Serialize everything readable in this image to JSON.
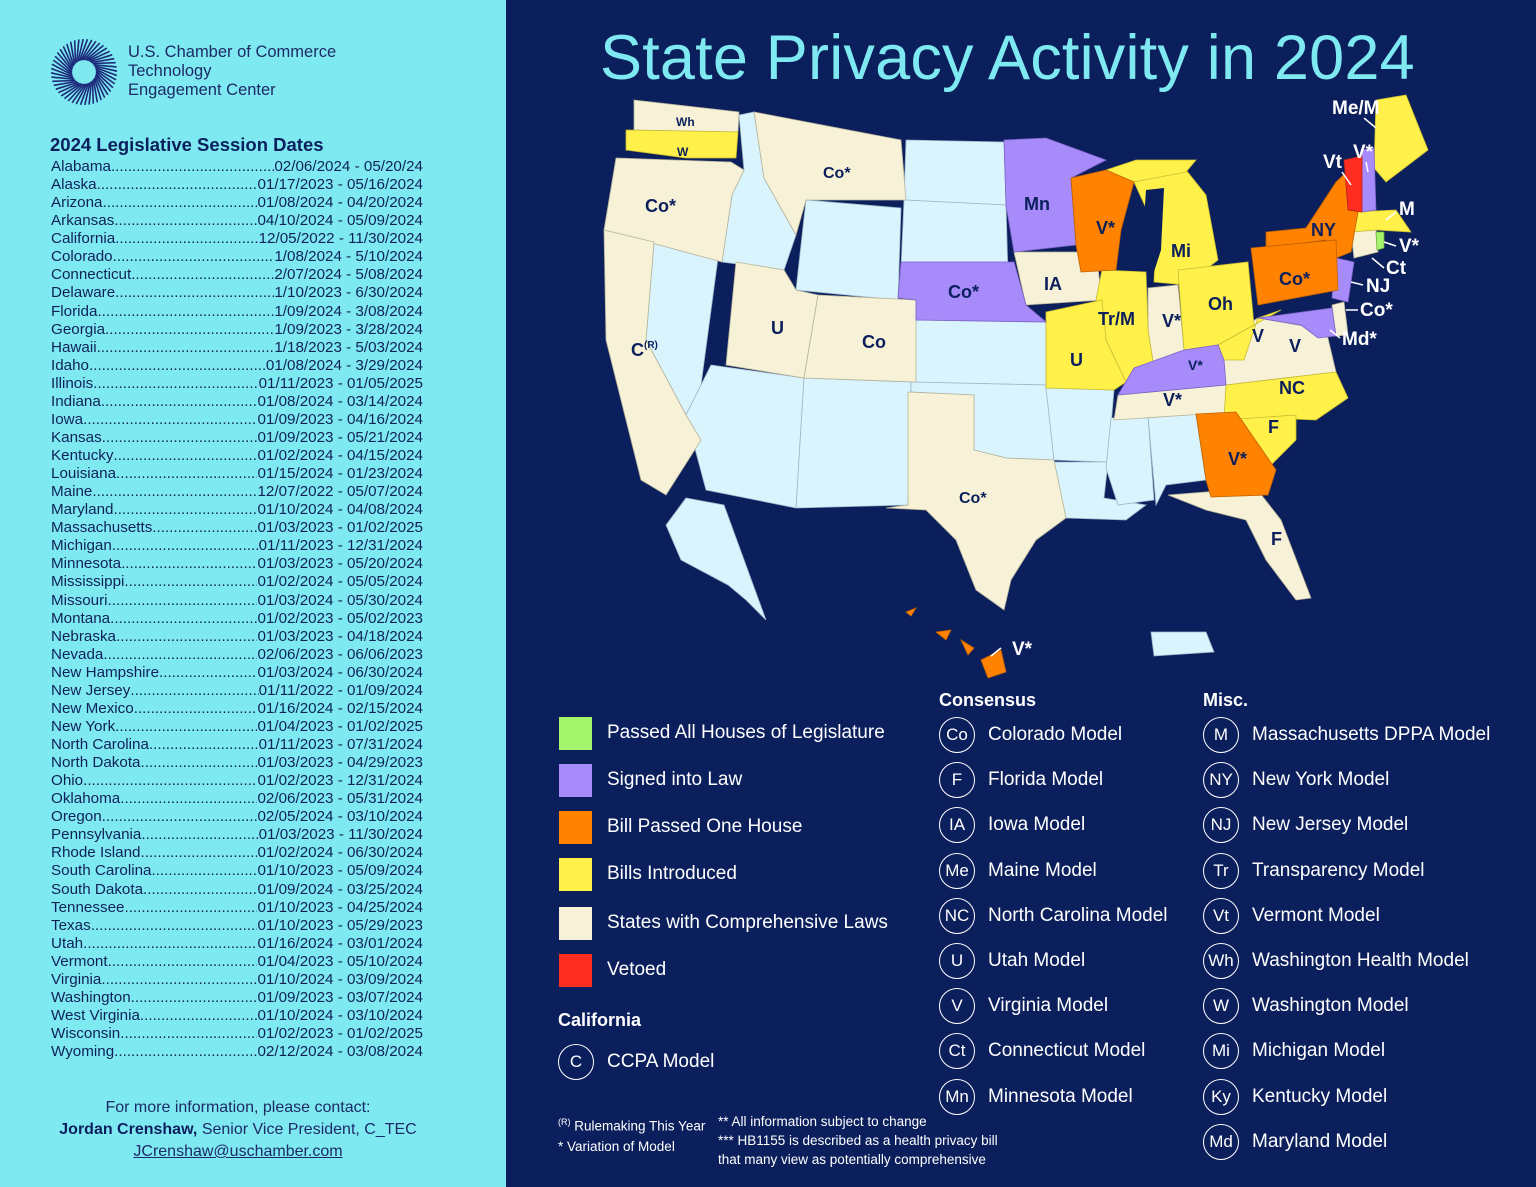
{
  "organization": {
    "logo": "sunburst-logo",
    "name_lines": [
      "U.S. Chamber of Commerce",
      "Technology",
      "Engagement Center"
    ]
  },
  "sessions": {
    "title": "2024 Legislative Session Dates",
    "rows": [
      {
        "state": "Alabama",
        "dates": "02/06/2024 - 05/20/24"
      },
      {
        "state": "Alaska",
        "dates": "01/17/2023 - 05/16/2024"
      },
      {
        "state": "Arizona",
        "dates": "01/08/2024 - 04/20/2024"
      },
      {
        "state": "Arkansas",
        "dates": "04/10/2024 - 05/09/2024"
      },
      {
        "state": "California",
        "dates": "12/05/2022 - 11/30/2024"
      },
      {
        "state": "Colorado",
        "dates": "1/08/2024 - 5/10/2024"
      },
      {
        "state": "Connecticut",
        "dates": "2/07/2024 - 5/08/2024"
      },
      {
        "state": "Delaware",
        "dates": "1/10/2023 - 6/30/2024"
      },
      {
        "state": "Florida",
        "dates": "1/09/2024 - 3/08/2024"
      },
      {
        "state": "Georgia",
        "dates": "1/09/2023 - 3/28/2024"
      },
      {
        "state": "Hawaii",
        "dates": "1/18/2023 - 5/03/2024"
      },
      {
        "state": "Idaho",
        "dates": "01/08/2024 - 3/29/2024"
      },
      {
        "state": "Illinois",
        "dates": "01/11/2023 - 01/05/2025"
      },
      {
        "state": "Indiana",
        "dates": "01/08/2024 - 03/14/2024"
      },
      {
        "state": "Iowa",
        "dates": "01/09/2023 - 04/16/2024"
      },
      {
        "state": "Kansas",
        "dates": "01/09/2023 - 05/21/2024"
      },
      {
        "state": "Kentucky",
        "dates": "01/02/2024 - 04/15/2024"
      },
      {
        "state": "Louisiana",
        "dates": "01/15/2024 - 01/23/2024"
      },
      {
        "state": "Maine",
        "dates": "12/07/2022 - 05/07/2024"
      },
      {
        "state": "Maryland",
        "dates": "01/10/2024 - 04/08/2024"
      },
      {
        "state": "Massachusetts",
        "dates": "01/03/2023 - 01/02/2025"
      },
      {
        "state": "Michigan",
        "dates": "01/11/2023 - 12/31/2024"
      },
      {
        "state": "Minnesota",
        "dates": "01/03/2023 - 05/20/2024"
      },
      {
        "state": "Mississippi",
        "dates": "01/02/2024 - 05/05/2024"
      },
      {
        "state": "Missouri",
        "dates": "01/03/2024 - 05/30/2024"
      },
      {
        "state": "Montana",
        "dates": "01/02/2023 - 05/02/2023"
      },
      {
        "state": "Nebraska",
        "dates": "01/03/2023 - 04/18/2024"
      },
      {
        "state": "Nevada",
        "dates": "02/06/2023 - 06/06/2023"
      },
      {
        "state": "New Hampshire",
        "dates": "01/03/2024 - 06/30/2024"
      },
      {
        "state": "New Jersey",
        "dates": "01/11/2022 - 01/09/2024"
      },
      {
        "state": "New Mexico",
        "dates": "01/16/2024 - 02/15/2024"
      },
      {
        "state": "New York",
        "dates": "01/04/2023 - 01/02/2025"
      },
      {
        "state": "North Carolina",
        "dates": "01/11/2023 - 07/31/2024"
      },
      {
        "state": "North Dakota",
        "dates": "01/03/2023 - 04/29/2023"
      },
      {
        "state": "Ohio",
        "dates": "01/02/2023 - 12/31/2024"
      },
      {
        "state": "Oklahoma",
        "dates": "02/06/2023 - 05/31/2024"
      },
      {
        "state": "Oregon",
        "dates": "02/05/2024 - 03/10/2024"
      },
      {
        "state": "Pennsylvania",
        "dates": "01/03/2023 - 11/30/2024"
      },
      {
        "state": "Rhode Island",
        "dates": "01/02/2024 - 06/30/2024"
      },
      {
        "state": "South Carolina",
        "dates": "01/10/2023 - 05/09/2024"
      },
      {
        "state": "South Dakota",
        "dates": "01/09/2024 - 03/25/2024"
      },
      {
        "state": "Tennessee",
        "dates": "01/10/2023 - 04/25/2024"
      },
      {
        "state": "Texas",
        "dates": "01/10/2023 - 05/29/2023"
      },
      {
        "state": "Utah",
        "dates": "01/16/2024 - 03/01/2024"
      },
      {
        "state": "Vermont",
        "dates": "01/04/2023 - 05/10/2024"
      },
      {
        "state": "Virginia",
        "dates": "01/10/2024 - 03/09/2024"
      },
      {
        "state": "Washington",
        "dates": "01/09/2023 - 03/07/2024"
      },
      {
        "state": "West Virginia",
        "dates": "01/10/2024 - 03/10/2024"
      },
      {
        "state": "Wisconsin",
        "dates": "01/02/2023 - 01/02/2025"
      },
      {
        "state": "Wyoming",
        "dates": "02/12/2024 - 03/08/2024"
      }
    ]
  },
  "contact": {
    "intro": "For more information, please contact:",
    "name": "Jordan Crenshaw,",
    "role": " Senior Vice President, C_TEC",
    "email": "JCrenshaw@uschamber.com"
  },
  "map": {
    "title": "State Privacy Activity in 2024",
    "colors": {
      "passed_all": "#a4f56b",
      "signed": "#a78bfa",
      "one_house": "#ff8200",
      "introduced": "#fff04a",
      "comprehensive": "#f6f1d7",
      "vetoed": "#ff2d20",
      "no_activity": "#d9f4fd",
      "background": "#0b1f5c",
      "accent": "#7fe9f2"
    },
    "state_labels": {
      "WA_health": "Wh",
      "WA": "W",
      "OR": "Co*",
      "CA": "C",
      "CA_sup": "(R)",
      "MT": "Co*",
      "UT": "U",
      "CO": "Co",
      "NE": "Co*",
      "MN": "Mn",
      "WI": "V*",
      "IA": "IA",
      "MI": "Mi",
      "IL": "Tr/M",
      "IN": "V*",
      "OH": "Oh",
      "MO": "U",
      "KY": "V*",
      "WV": "V",
      "VA": "V",
      "TN": "V*",
      "NC": "NC",
      "SC": "F",
      "GA": "V*",
      "FL": "F",
      "TX": "Co*",
      "HI": "V*",
      "NY": "NY",
      "PA": "Co*",
      "VT": "Vt",
      "NH": "V*",
      "ME": "Me/M",
      "MA": "M",
      "RI": "V*",
      "CT": "Ct",
      "NJ": "NJ",
      "DE": "Co*",
      "MD": "Md*"
    }
  },
  "legend": {
    "status": [
      {
        "label": "Passed All Houses of Legislature",
        "color": "#a4f56b"
      },
      {
        "label": "Signed into Law",
        "color": "#a78bfa"
      },
      {
        "label": "Bill Passed One House",
        "color": "#ff8200"
      },
      {
        "label": "Bills Introduced",
        "color": "#fff04a"
      },
      {
        "label": "States with Comprehensive Laws",
        "color": "#f6f1d7"
      },
      {
        "label": "Vetoed",
        "color": "#ff2d20"
      }
    ],
    "california": {
      "heading": "California",
      "items": [
        {
          "code": "C",
          "label": "CCPA Model"
        }
      ]
    },
    "consensus": {
      "heading": "Consensus",
      "items": [
        {
          "code": "Co",
          "label": "Colorado Model"
        },
        {
          "code": "F",
          "label": "Florida Model"
        },
        {
          "code": "IA",
          "label": "Iowa Model"
        },
        {
          "code": "Me",
          "label": "Maine Model"
        },
        {
          "code": "NC",
          "label": "North Carolina Model"
        },
        {
          "code": "U",
          "label": "Utah Model"
        },
        {
          "code": "V",
          "label": "Virginia Model"
        },
        {
          "code": "Ct",
          "label": "Connecticut Model"
        },
        {
          "code": "Mn",
          "label": "Minnesota Model"
        }
      ]
    },
    "misc": {
      "heading": "Misc.",
      "items": [
        {
          "code": "M",
          "label": "Massachusetts DPPA Model"
        },
        {
          "code": "NY",
          "label": "New York Model"
        },
        {
          "code": "NJ",
          "label": "New Jersey Model"
        },
        {
          "code": "Tr",
          "label": "Transparency Model"
        },
        {
          "code": "Vt",
          "label": "Vermont Model"
        },
        {
          "code": "Wh",
          "label": "Washington Health Model"
        },
        {
          "code": "W",
          "label": "Washington Model"
        },
        {
          "code": "Mi",
          "label": "Michigan Model"
        },
        {
          "code": "Ky",
          "label": "Kentucky Model"
        },
        {
          "code": "Md",
          "label": "Maryland Model"
        }
      ]
    },
    "notes": {
      "rulemaking_sup": "(R)",
      "rulemaking": " Rulemaking This Year",
      "variation": "* Variation of Model",
      "subject_change": "** All information subject to change",
      "hb1155_line1": "*** HB1155 is described as a health privacy bill",
      "hb1155_line2": "that many view as potentially comprehensive"
    }
  }
}
